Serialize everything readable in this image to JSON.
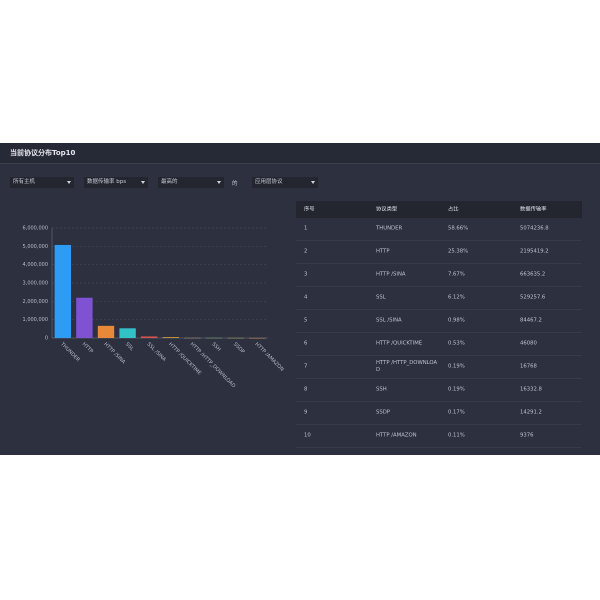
{
  "header": {
    "title": "当前协议分布Top10"
  },
  "filters": {
    "host": "所有主机",
    "metric": "数据传输率 bps",
    "order": "最高的",
    "connector": "的",
    "layer": "应用层协议"
  },
  "chart_data": {
    "type": "bar",
    "categories": [
      "THUNDER",
      "HTTP",
      "HTTP /SINA",
      "SSL",
      "SSL /SINA",
      "HTTP /QUICKTIME",
      "HTTP /HTTP_DOWNLOAD",
      "SSH",
      "SSDP",
      "HTTP /AMAZON"
    ],
    "values": [
      5074236.8,
      2195419.2,
      663635.2,
      529257.6,
      84467.2,
      46080,
      16768,
      16332.8,
      14291.2,
      9376
    ],
    "colors": [
      "#2e9cf2",
      "#7e52d3",
      "#e8893a",
      "#32c2c6",
      "#d9534f",
      "#d9a03a",
      "#8a7f6a",
      "#6b8a6a",
      "#8a8a5a",
      "#a07a50"
    ],
    "ylim": [
      0,
      6000000
    ],
    "yticks": [
      0,
      {
        "value": 1000000,
        "label": "1,000,000"
      },
      {
        "value": 2000000,
        "label": "2,000,000"
      },
      {
        "value": 3000000,
        "label": "3,000,000"
      },
      {
        "value": 4000000,
        "label": "4,000,000"
      },
      {
        "value": 5000000,
        "label": "5,000,000"
      },
      {
        "value": 6000000,
        "label": "6,000,000"
      }
    ],
    "grid": true
  },
  "table": {
    "columns": [
      "序号",
      "协议类型",
      "占比",
      "数据传输率"
    ],
    "rows": [
      [
        "1",
        "THUNDER",
        "58.66%",
        "5074236.8"
      ],
      [
        "2",
        "HTTP",
        "25.38%",
        "2195419.2"
      ],
      [
        "3",
        "HTTP /SINA",
        "7.67%",
        "663635.2"
      ],
      [
        "4",
        "SSL",
        "6.12%",
        "529257.6"
      ],
      [
        "5",
        "SSL /SINA",
        "0.98%",
        "84467.2"
      ],
      [
        "6",
        "HTTP /QUICKTIME",
        "0.53%",
        "46080"
      ],
      [
        "7",
        "HTTP /HTTP_DOWNLOAD",
        "0.19%",
        "16768"
      ],
      [
        "8",
        "SSH",
        "0.19%",
        "16332.8"
      ],
      [
        "9",
        "SSDP",
        "0.17%",
        "14291.2"
      ],
      [
        "10",
        "HTTP /AMAZON",
        "0.11%",
        "9376"
      ]
    ]
  }
}
